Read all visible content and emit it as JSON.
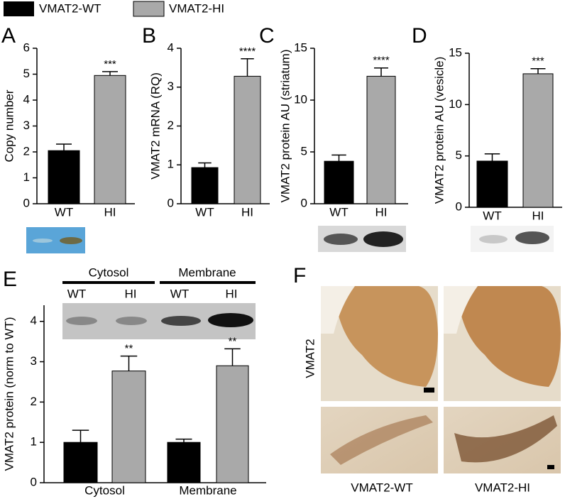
{
  "legend": [
    {
      "name": "VMAT2-WT",
      "color": "#000000"
    },
    {
      "name": "VMAT2-HI",
      "color": "#a9a9a9"
    }
  ],
  "chart_data": [
    {
      "type": "bar",
      "panel": "A",
      "y_label": "Copy number",
      "categories": [
        "WT",
        "HI"
      ],
      "values": [
        2.05,
        4.95
      ],
      "errors": [
        0.25,
        0.15
      ],
      "colors": [
        "#000000",
        "#a9a9a9"
      ],
      "annotations": [
        null,
        "***"
      ],
      "ylim": [
        0,
        6
      ],
      "yticks": [
        0,
        1,
        2,
        3,
        4,
        5,
        6
      ]
    },
    {
      "type": "bar",
      "panel": "B",
      "y_label": "VMAT2 mRNA (RQ)",
      "categories": [
        "WT",
        "HI"
      ],
      "values": [
        0.93,
        3.28
      ],
      "errors": [
        0.12,
        0.45
      ],
      "colors": [
        "#000000",
        "#a9a9a9"
      ],
      "annotations": [
        null,
        "****"
      ],
      "ylim": [
        0,
        4
      ],
      "yticks": [
        0,
        1,
        2,
        3,
        4
      ]
    },
    {
      "type": "bar",
      "panel": "C",
      "y_label": "VMAT2 protein AU (striatum)",
      "categories": [
        "WT",
        "HI"
      ],
      "values": [
        4.1,
        12.3
      ],
      "errors": [
        0.6,
        0.8
      ],
      "colors": [
        "#000000",
        "#a9a9a9"
      ],
      "annotations": [
        null,
        "****"
      ],
      "ylim": [
        0,
        15
      ],
      "yticks": [
        0,
        5,
        10,
        15
      ]
    },
    {
      "type": "bar",
      "panel": "D",
      "y_label": "VMAT2 protein AU (vesicle)",
      "categories": [
        "WT",
        "HI"
      ],
      "values": [
        4.5,
        13.0
      ],
      "errors": [
        0.7,
        0.5
      ],
      "colors": [
        "#000000",
        "#a9a9a9"
      ],
      "annotations": [
        null,
        "***"
      ],
      "ylim": [
        0,
        15
      ],
      "yticks": [
        0,
        5,
        10,
        15
      ]
    },
    {
      "type": "grouped_bar",
      "panel": "E",
      "y_label": "VMAT2 protein (norm to WT)",
      "categories": [
        "Cytosol",
        "Membrane"
      ],
      "series": [
        {
          "name": "WT",
          "color": "#000000",
          "values": [
            1.0,
            1.0
          ],
          "errors": [
            0.3,
            0.08
          ],
          "annotations": [
            null,
            null
          ]
        },
        {
          "name": "HI",
          "color": "#a9a9a9",
          "values": [
            2.77,
            2.9
          ],
          "errors": [
            0.37,
            0.42
          ],
          "annotations": [
            "**",
            "**"
          ]
        }
      ],
      "blot_groups": [
        "Cytosol",
        "Membrane"
      ],
      "blot_lanes": [
        "WT",
        "HI",
        "WT",
        "HI"
      ],
      "ylim": [
        0,
        4.4
      ],
      "yticks": [
        0,
        1,
        2,
        3,
        4
      ]
    }
  ],
  "panel_f": {
    "panel": "F",
    "row_label": "VMAT2",
    "columns": [
      "VMAT2-WT",
      "VMAT2-HI"
    ]
  }
}
